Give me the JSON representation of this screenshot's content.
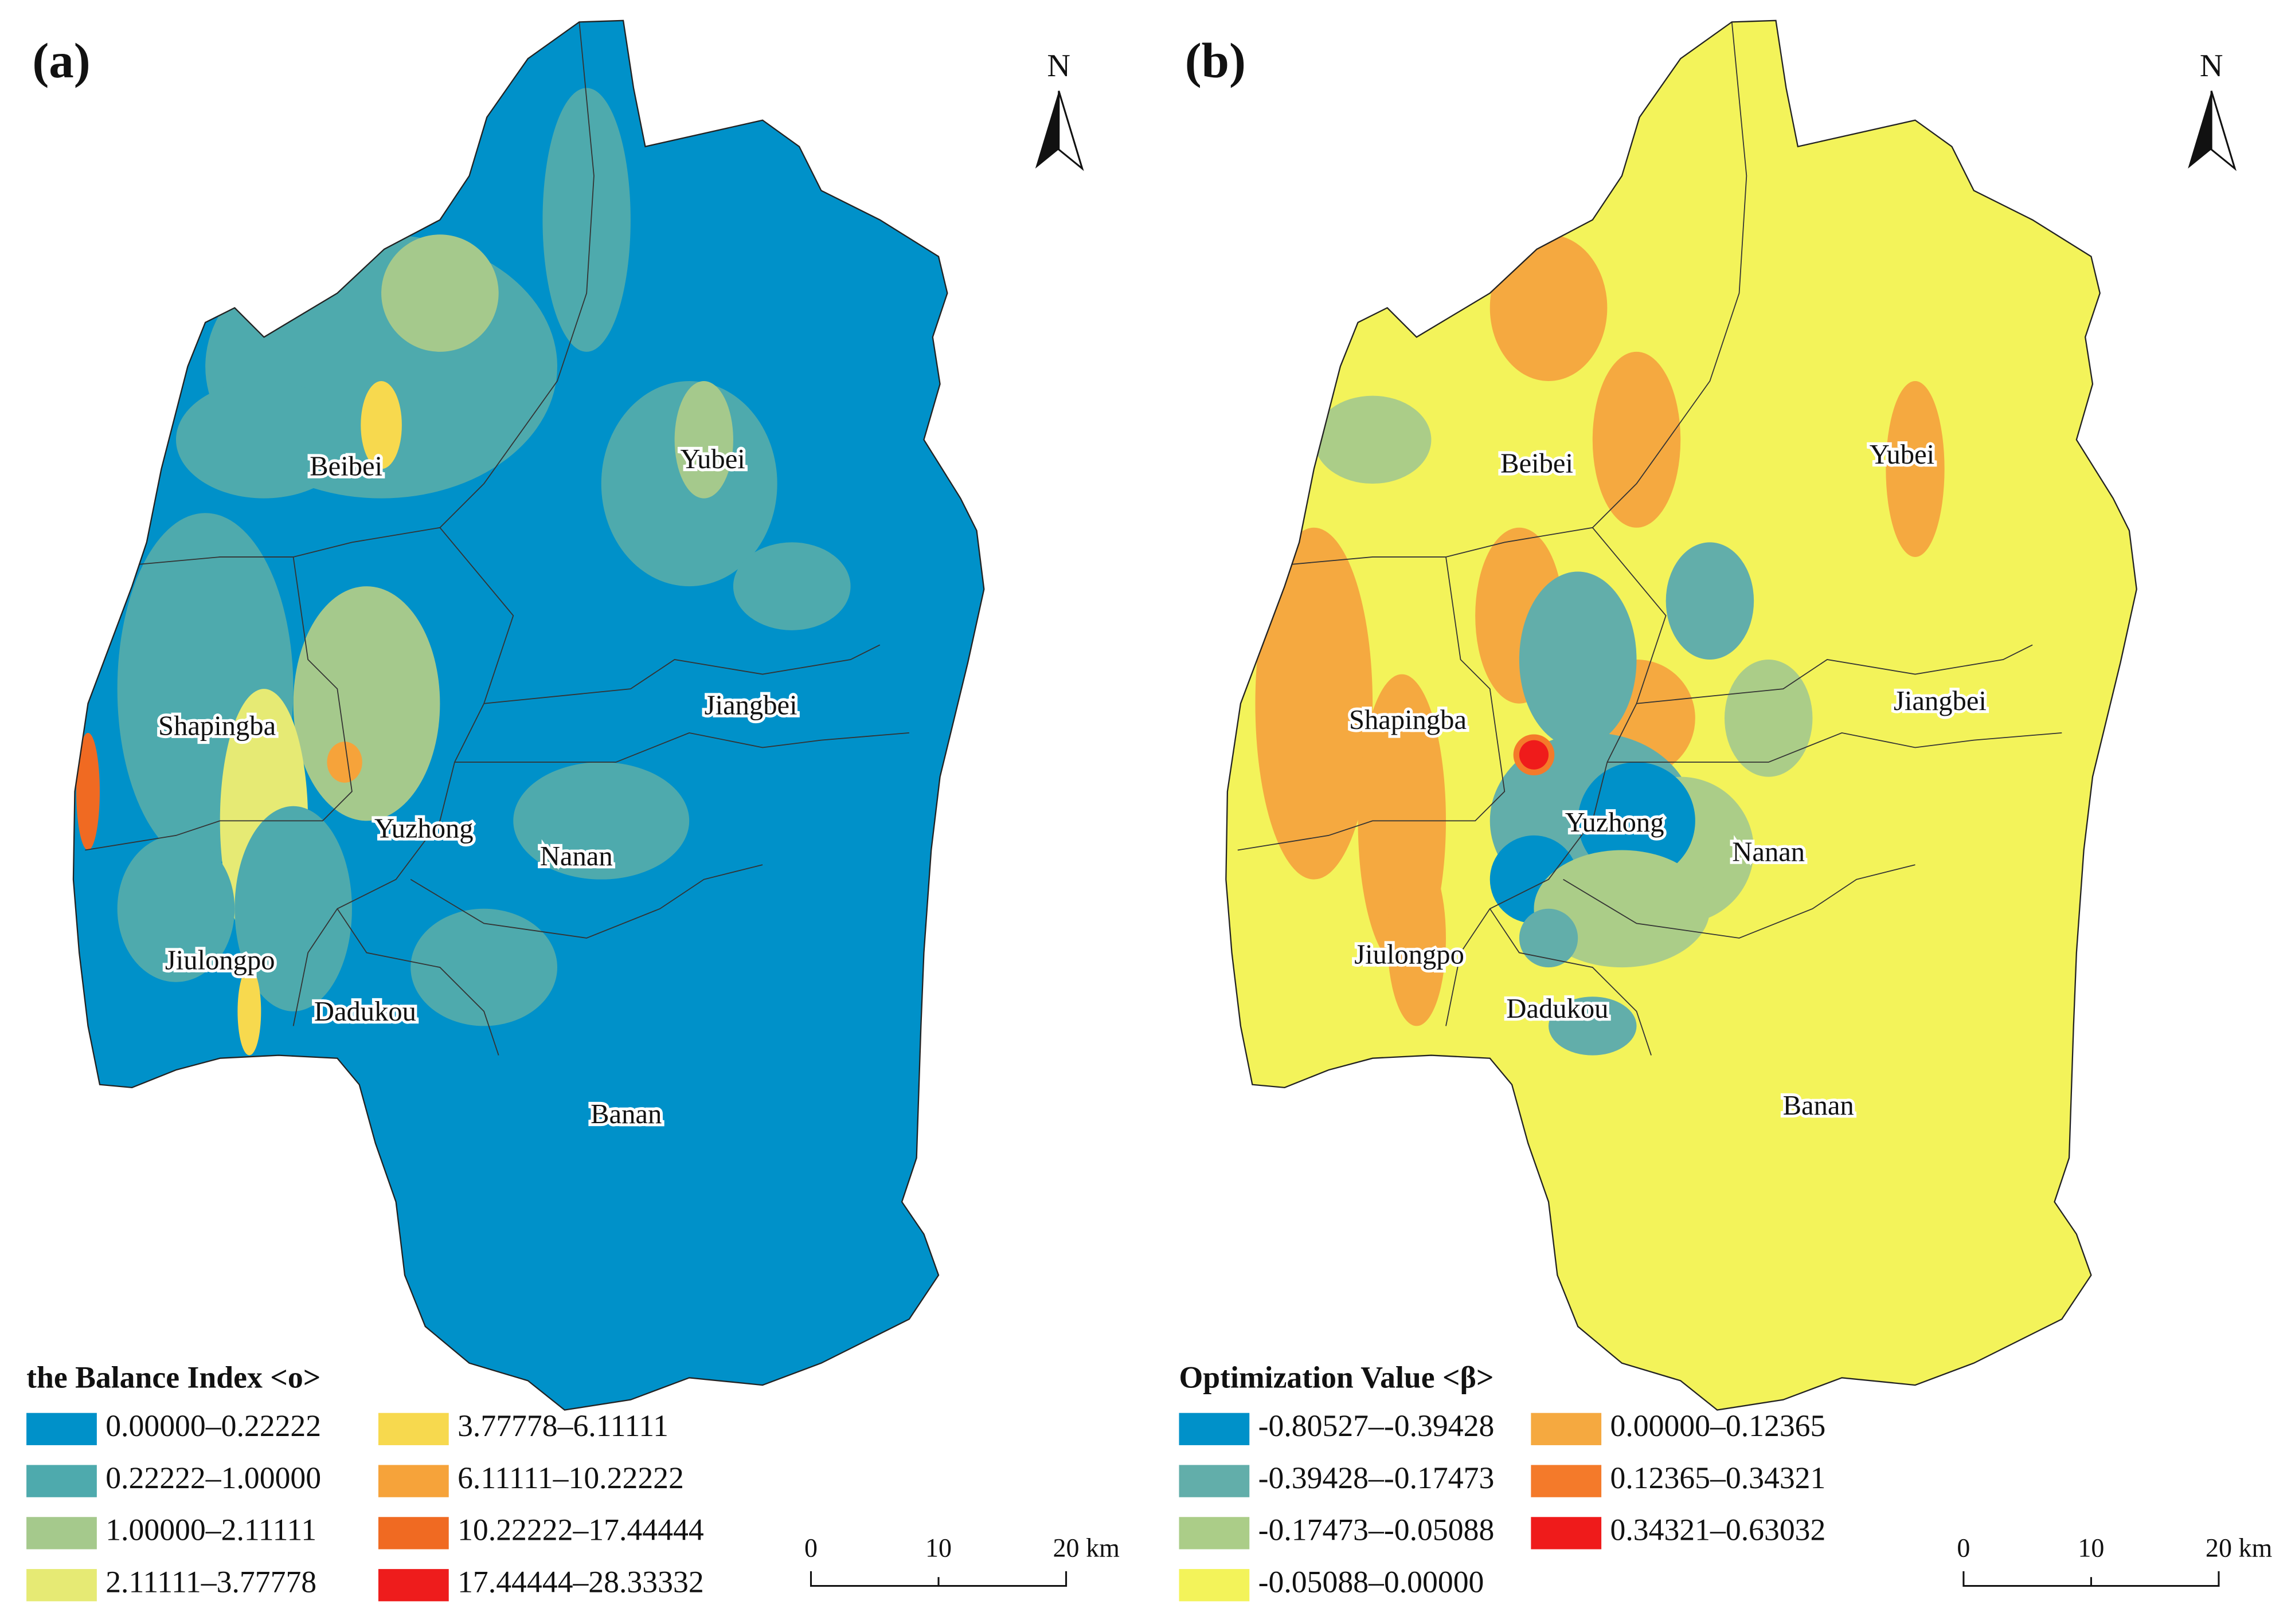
{
  "panels": [
    {
      "label": "(a)",
      "north": "N",
      "districts": [
        "Beibei",
        "Yubei",
        "Shapingba",
        "Jiangbei",
        "Yuzhong",
        "Nanan",
        "Jiulongpo",
        "Dadukou",
        "Banan"
      ],
      "legend": {
        "title": "the Balance Index <ο>",
        "items": [
          {
            "label": "0.00000–0.22222",
            "color": "#0091c9"
          },
          {
            "label": "0.22222–1.00000",
            "color": "#4eaaad"
          },
          {
            "label": "1.00000–2.11111",
            "color": "#a5c98c"
          },
          {
            "label": "2.11111–3.77778",
            "color": "#e6ea74"
          },
          {
            "label": "3.77778–6.11111",
            "color": "#f7d94e"
          },
          {
            "label": "6.11111–10.22222",
            "color": "#f6a33a"
          },
          {
            "label": "10.22222–17.44444",
            "color": "#f06a22"
          },
          {
            "label": "17.44444–28.33332",
            "color": "#ee1c1c"
          }
        ]
      },
      "scale": {
        "ticks": [
          "0",
          "10",
          "20"
        ],
        "unit": "km"
      }
    },
    {
      "label": "(b)",
      "north": "N",
      "districts": [
        "Beibei",
        "Yubei",
        "Shapingba",
        "Jiangbei",
        "Yuzhong",
        "Nanan",
        "Jiulongpo",
        "Dadukou",
        "Banan"
      ],
      "legend": {
        "title": "Optimization Value <β>",
        "items": [
          {
            "label": "-0.80527–-0.39428",
            "color": "#0091c9"
          },
          {
            "label": "-0.39428–-0.17473",
            "color": "#62aeaa"
          },
          {
            "label": "-0.17473–-0.05088",
            "color": "#abcd88"
          },
          {
            "label": "-0.05088–0.00000",
            "color": "#f3f35a"
          },
          {
            "label": "0.00000–0.12365",
            "color": "#f5a940"
          },
          {
            "label": "0.12365–0.34321",
            "color": "#f47a2a"
          },
          {
            "label": "0.34321–0.63032",
            "color": "#ef1b1b"
          }
        ]
      },
      "scale": {
        "ticks": [
          "0",
          "10",
          "20"
        ],
        "unit": "km"
      }
    }
  ]
}
